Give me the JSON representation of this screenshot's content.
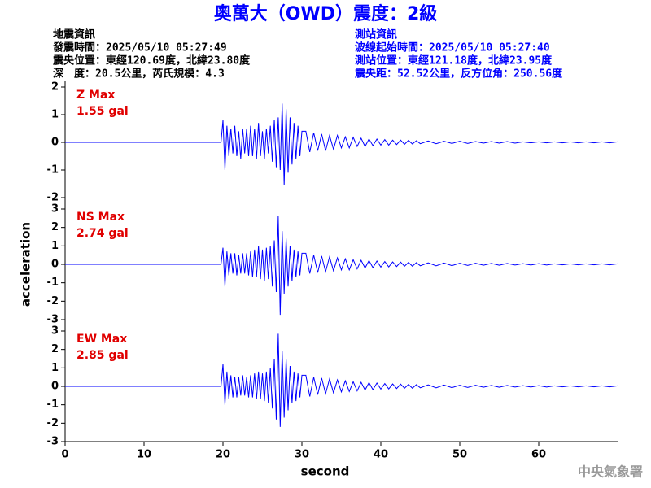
{
  "title": "奧萬大（OWD）震度：2級",
  "info_left": [
    "地震資訊",
    "發震時間：2025/05/10 05:27:49",
    "震央位置：東經120.69度，北緯23.80度",
    "深　度：20.5公里，芮氏規模：4.3"
  ],
  "info_right": [
    "測站資訊",
    "波線起始時間：2025/05/10 05:27:40",
    "測站位置：東經121.18度，北緯23.95度",
    "震央距：52.52公里，反方位角：250.56度"
  ],
  "watermark": "中央氣象署",
  "chart_data": [
    {
      "type": "line",
      "annotation": "Z Max",
      "max_label": "1.55 gal",
      "color": "#0000ff",
      "xlim": [
        0,
        70
      ],
      "ylim": [
        -2,
        2
      ],
      "yticks": [
        -2,
        -1,
        0,
        1,
        2
      ],
      "x": [
        0,
        19.75,
        20,
        20.25,
        20.5,
        20.75,
        21,
        21.25,
        21.5,
        21.75,
        22,
        22.25,
        22.5,
        22.75,
        23,
        23.25,
        23.5,
        23.75,
        24,
        24.25,
        24.5,
        24.75,
        25,
        25.25,
        25.5,
        25.75,
        26,
        26.25,
        26.5,
        26.75,
        27,
        27.25,
        27.5,
        27.75,
        28,
        28.25,
        28.5,
        28.75,
        29,
        29.25,
        29.5,
        29.75,
        30,
        30.5,
        31,
        31.5,
        32,
        32.5,
        33,
        33.5,
        34,
        34.5,
        35,
        35.5,
        36,
        36.5,
        37,
        37.5,
        38,
        38.5,
        39,
        39.5,
        40,
        40.5,
        41,
        41.5,
        42,
        42.5,
        43,
        43.5,
        44,
        44.5,
        45,
        46,
        47,
        48,
        49,
        50,
        51,
        52,
        53,
        54,
        55,
        56,
        57,
        58,
        59,
        60,
        61,
        62,
        63,
        64,
        65,
        66,
        67,
        68,
        69,
        70
      ],
      "values": [
        0,
        0,
        0.8,
        -1.0,
        0.6,
        -0.5,
        0.5,
        -0.4,
        0.6,
        -0.5,
        0.4,
        -0.6,
        0.5,
        -0.4,
        0.5,
        -0.5,
        0.6,
        -0.5,
        0.5,
        -0.6,
        0.7,
        -0.5,
        0.4,
        -0.6,
        0.5,
        -0.4,
        0.6,
        -0.7,
        0.8,
        -0.9,
        0.9,
        -1.0,
        1.4,
        -1.55,
        1.2,
        -1.1,
        0.9,
        -0.8,
        0.7,
        -0.6,
        0.6,
        -0.5,
        0.4,
        0.4,
        -0.35,
        0.35,
        -0.3,
        0.3,
        -0.3,
        0.25,
        -0.25,
        0.25,
        -0.2,
        0.2,
        -0.2,
        0.18,
        -0.15,
        0.15,
        -0.15,
        0.12,
        -0.12,
        0.12,
        -0.1,
        0.1,
        -0.1,
        0.08,
        -0.08,
        0.08,
        -0.07,
        0.07,
        -0.06,
        0.06,
        -0.05,
        0.05,
        -0.05,
        0.04,
        -0.04,
        0.04,
        -0.04,
        0.03,
        -0.03,
        0.03,
        -0.03,
        0.03,
        -0.03,
        0.02,
        -0.02,
        0.02,
        -0.02,
        0.02,
        -0.02,
        0.02,
        -0.02,
        0.02,
        -0.02,
        0.02,
        -0.02,
        0.02
      ]
    },
    {
      "type": "line",
      "annotation": "NS Max",
      "max_label": "2.74 gal",
      "color": "#0000ff",
      "ylabel": "acceleration",
      "xlim": [
        0,
        70
      ],
      "ylim": [
        -3,
        3
      ],
      "yticks": [
        -3,
        -2,
        -1,
        0,
        1,
        2,
        3
      ],
      "x": [
        0,
        19.75,
        20,
        20.25,
        20.5,
        20.75,
        21,
        21.25,
        21.5,
        21.75,
        22,
        22.25,
        22.5,
        22.75,
        23,
        23.25,
        23.5,
        23.75,
        24,
        24.25,
        24.5,
        24.75,
        25,
        25.25,
        25.5,
        25.75,
        26,
        26.25,
        26.5,
        26.75,
        27,
        27.25,
        27.5,
        27.75,
        28,
        28.25,
        28.5,
        28.75,
        29,
        29.25,
        29.5,
        29.75,
        30,
        30.5,
        31,
        31.5,
        32,
        32.5,
        33,
        33.5,
        34,
        34.5,
        35,
        35.5,
        36,
        36.5,
        37,
        37.5,
        38,
        38.5,
        39,
        39.5,
        40,
        40.5,
        41,
        41.5,
        42,
        42.5,
        43,
        43.5,
        44,
        44.5,
        45,
        46,
        47,
        48,
        49,
        50,
        51,
        52,
        53,
        54,
        55,
        56,
        57,
        58,
        59,
        60,
        61,
        62,
        63,
        64,
        65,
        66,
        67,
        68,
        69,
        70
      ],
      "values": [
        0,
        0,
        0.9,
        -1.2,
        0.7,
        -0.6,
        0.6,
        -0.5,
        0.6,
        -0.6,
        0.5,
        -0.5,
        0.6,
        -0.5,
        0.6,
        -0.6,
        0.7,
        -0.7,
        0.8,
        -0.7,
        1.0,
        -0.8,
        0.8,
        -0.9,
        0.9,
        -0.8,
        1.0,
        -1.2,
        1.3,
        -1.5,
        2.6,
        -2.74,
        1.8,
        -1.6,
        1.4,
        -1.2,
        1.0,
        -0.9,
        0.8,
        -0.7,
        0.7,
        -0.6,
        0.6,
        0.6,
        -0.5,
        0.5,
        -0.45,
        0.45,
        -0.4,
        0.4,
        -0.35,
        0.35,
        -0.3,
        0.3,
        -0.3,
        0.25,
        -0.25,
        0.22,
        -0.2,
        0.2,
        -0.18,
        0.18,
        -0.15,
        0.15,
        -0.14,
        0.13,
        -0.12,
        0.12,
        -0.1,
        0.1,
        -0.1,
        0.09,
        -0.08,
        0.08,
        -0.08,
        0.07,
        -0.07,
        0.06,
        -0.06,
        0.06,
        -0.05,
        0.05,
        -0.05,
        0.05,
        -0.04,
        0.04,
        -0.04,
        0.04,
        -0.04,
        0.03,
        -0.03,
        0.03,
        -0.03,
        0.03,
        -0.03,
        0.03,
        -0.03,
        0.03
      ]
    },
    {
      "type": "line",
      "annotation": "EW Max",
      "max_label": "2.85 gal",
      "color": "#0000ff",
      "xlabel": "second",
      "xlim": [
        0,
        70
      ],
      "xticks": [
        0,
        10,
        20,
        30,
        40,
        50,
        60
      ],
      "ylim": [
        -3,
        3
      ],
      "yticks": [
        -3,
        -2,
        -1,
        0,
        1,
        2,
        3
      ],
      "x": [
        0,
        19.75,
        20,
        20.25,
        20.5,
        20.75,
        21,
        21.25,
        21.5,
        21.75,
        22,
        22.25,
        22.5,
        22.75,
        23,
        23.25,
        23.5,
        23.75,
        24,
        24.25,
        24.5,
        24.75,
        25,
        25.25,
        25.5,
        25.75,
        26,
        26.25,
        26.5,
        26.75,
        27,
        27.25,
        27.5,
        27.75,
        28,
        28.25,
        28.5,
        28.75,
        29,
        29.25,
        29.5,
        29.75,
        30,
        30.5,
        31,
        31.5,
        32,
        32.5,
        33,
        33.5,
        34,
        34.5,
        35,
        35.5,
        36,
        36.5,
        37,
        37.5,
        38,
        38.5,
        39,
        39.5,
        40,
        40.5,
        41,
        41.5,
        42,
        42.5,
        43,
        43.5,
        44,
        44.5,
        45,
        46,
        47,
        48,
        49,
        50,
        51,
        52,
        53,
        54,
        55,
        56,
        57,
        58,
        59,
        60,
        61,
        62,
        63,
        64,
        65,
        66,
        67,
        68,
        69,
        70
      ],
      "values": [
        0,
        0,
        1.2,
        -1.0,
        0.8,
        -0.7,
        0.6,
        -0.6,
        0.5,
        -0.6,
        0.5,
        -0.5,
        0.6,
        -0.5,
        0.5,
        -0.6,
        0.6,
        -0.6,
        0.7,
        -0.7,
        0.8,
        -0.7,
        0.7,
        -0.8,
        0.8,
        -0.9,
        1.0,
        -1.2,
        1.5,
        -1.8,
        2.85,
        -2.2,
        1.9,
        -1.7,
        1.5,
        -1.3,
        1.1,
        -0.9,
        0.8,
        -0.8,
        0.7,
        -0.6,
        0.6,
        0.6,
        -0.55,
        0.5,
        -0.45,
        0.45,
        -0.4,
        0.4,
        -0.35,
        0.35,
        -0.3,
        0.3,
        -0.28,
        0.25,
        -0.25,
        0.22,
        -0.2,
        0.2,
        -0.18,
        0.18,
        -0.15,
        0.15,
        -0.14,
        0.13,
        -0.12,
        0.12,
        -0.1,
        0.1,
        -0.1,
        0.09,
        -0.08,
        0.08,
        -0.08,
        0.07,
        -0.07,
        0.06,
        -0.06,
        0.06,
        -0.05,
        0.05,
        -0.05,
        0.05,
        -0.04,
        0.04,
        -0.04,
        0.04,
        -0.04,
        0.03,
        -0.03,
        0.03,
        -0.03,
        0.03,
        -0.03,
        0.03,
        -0.03,
        0.03
      ]
    }
  ]
}
